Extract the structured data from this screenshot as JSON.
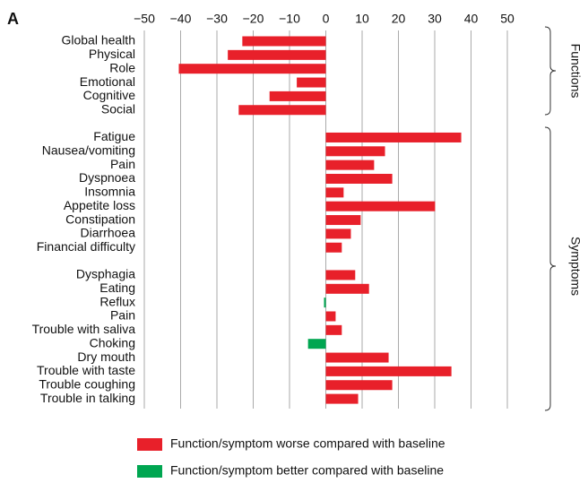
{
  "chart_data": {
    "type": "hbar",
    "panel_label": "A",
    "categories": [
      "Global health",
      "Physical",
      "Role",
      "Emotional",
      "Cognitive",
      "Social",
      null,
      "Fatigue",
      "Nausea/vomiting",
      "Pain",
      "Dyspnoea",
      "Insomnia",
      "Appetite loss",
      "Constipation",
      "Diarrhoea",
      "Financial difficulty",
      null,
      "Dysphagia",
      "Eating",
      "Reflux",
      "Pain",
      "Trouble with saliva",
      "Choking",
      "Dry mouth",
      "Trouble with taste",
      "Trouble coughing",
      "Trouble in talking"
    ],
    "series": [
      {
        "name": "Function/symptom worse compared with baseline",
        "color": "#e8202a",
        "values": [
          -23,
          -27,
          -40.5,
          -8,
          -15.5,
          -24,
          null,
          37.3,
          16.3,
          13.3,
          18.3,
          4.9,
          30.1,
          9.6,
          6.9,
          4.4,
          null,
          8.1,
          11.9,
          null,
          2.7,
          4.4,
          null,
          17.3,
          34.6,
          18.3,
          8.9
        ]
      },
      {
        "name": "Function/symptom better compared with baseline",
        "color": "#00a651",
        "values": [
          null,
          null,
          null,
          null,
          null,
          null,
          null,
          null,
          null,
          null,
          null,
          null,
          null,
          null,
          null,
          null,
          null,
          null,
          null,
          -0.5,
          null,
          null,
          -4.9,
          null,
          null,
          null,
          null
        ]
      }
    ],
    "xlim": [
      -50,
      50
    ],
    "xticks": [
      {
        "value": -50,
        "label": "−50"
      },
      {
        "value": -40,
        "label": "−40"
      },
      {
        "value": -30,
        "label": "−30"
      },
      {
        "value": -20,
        "label": "−20"
      },
      {
        "value": -10,
        "label": "−10"
      },
      0,
      10,
      20,
      30,
      40,
      50
    ],
    "groups": [
      "Functions",
      "Symptoms"
    ],
    "grid": true
  }
}
